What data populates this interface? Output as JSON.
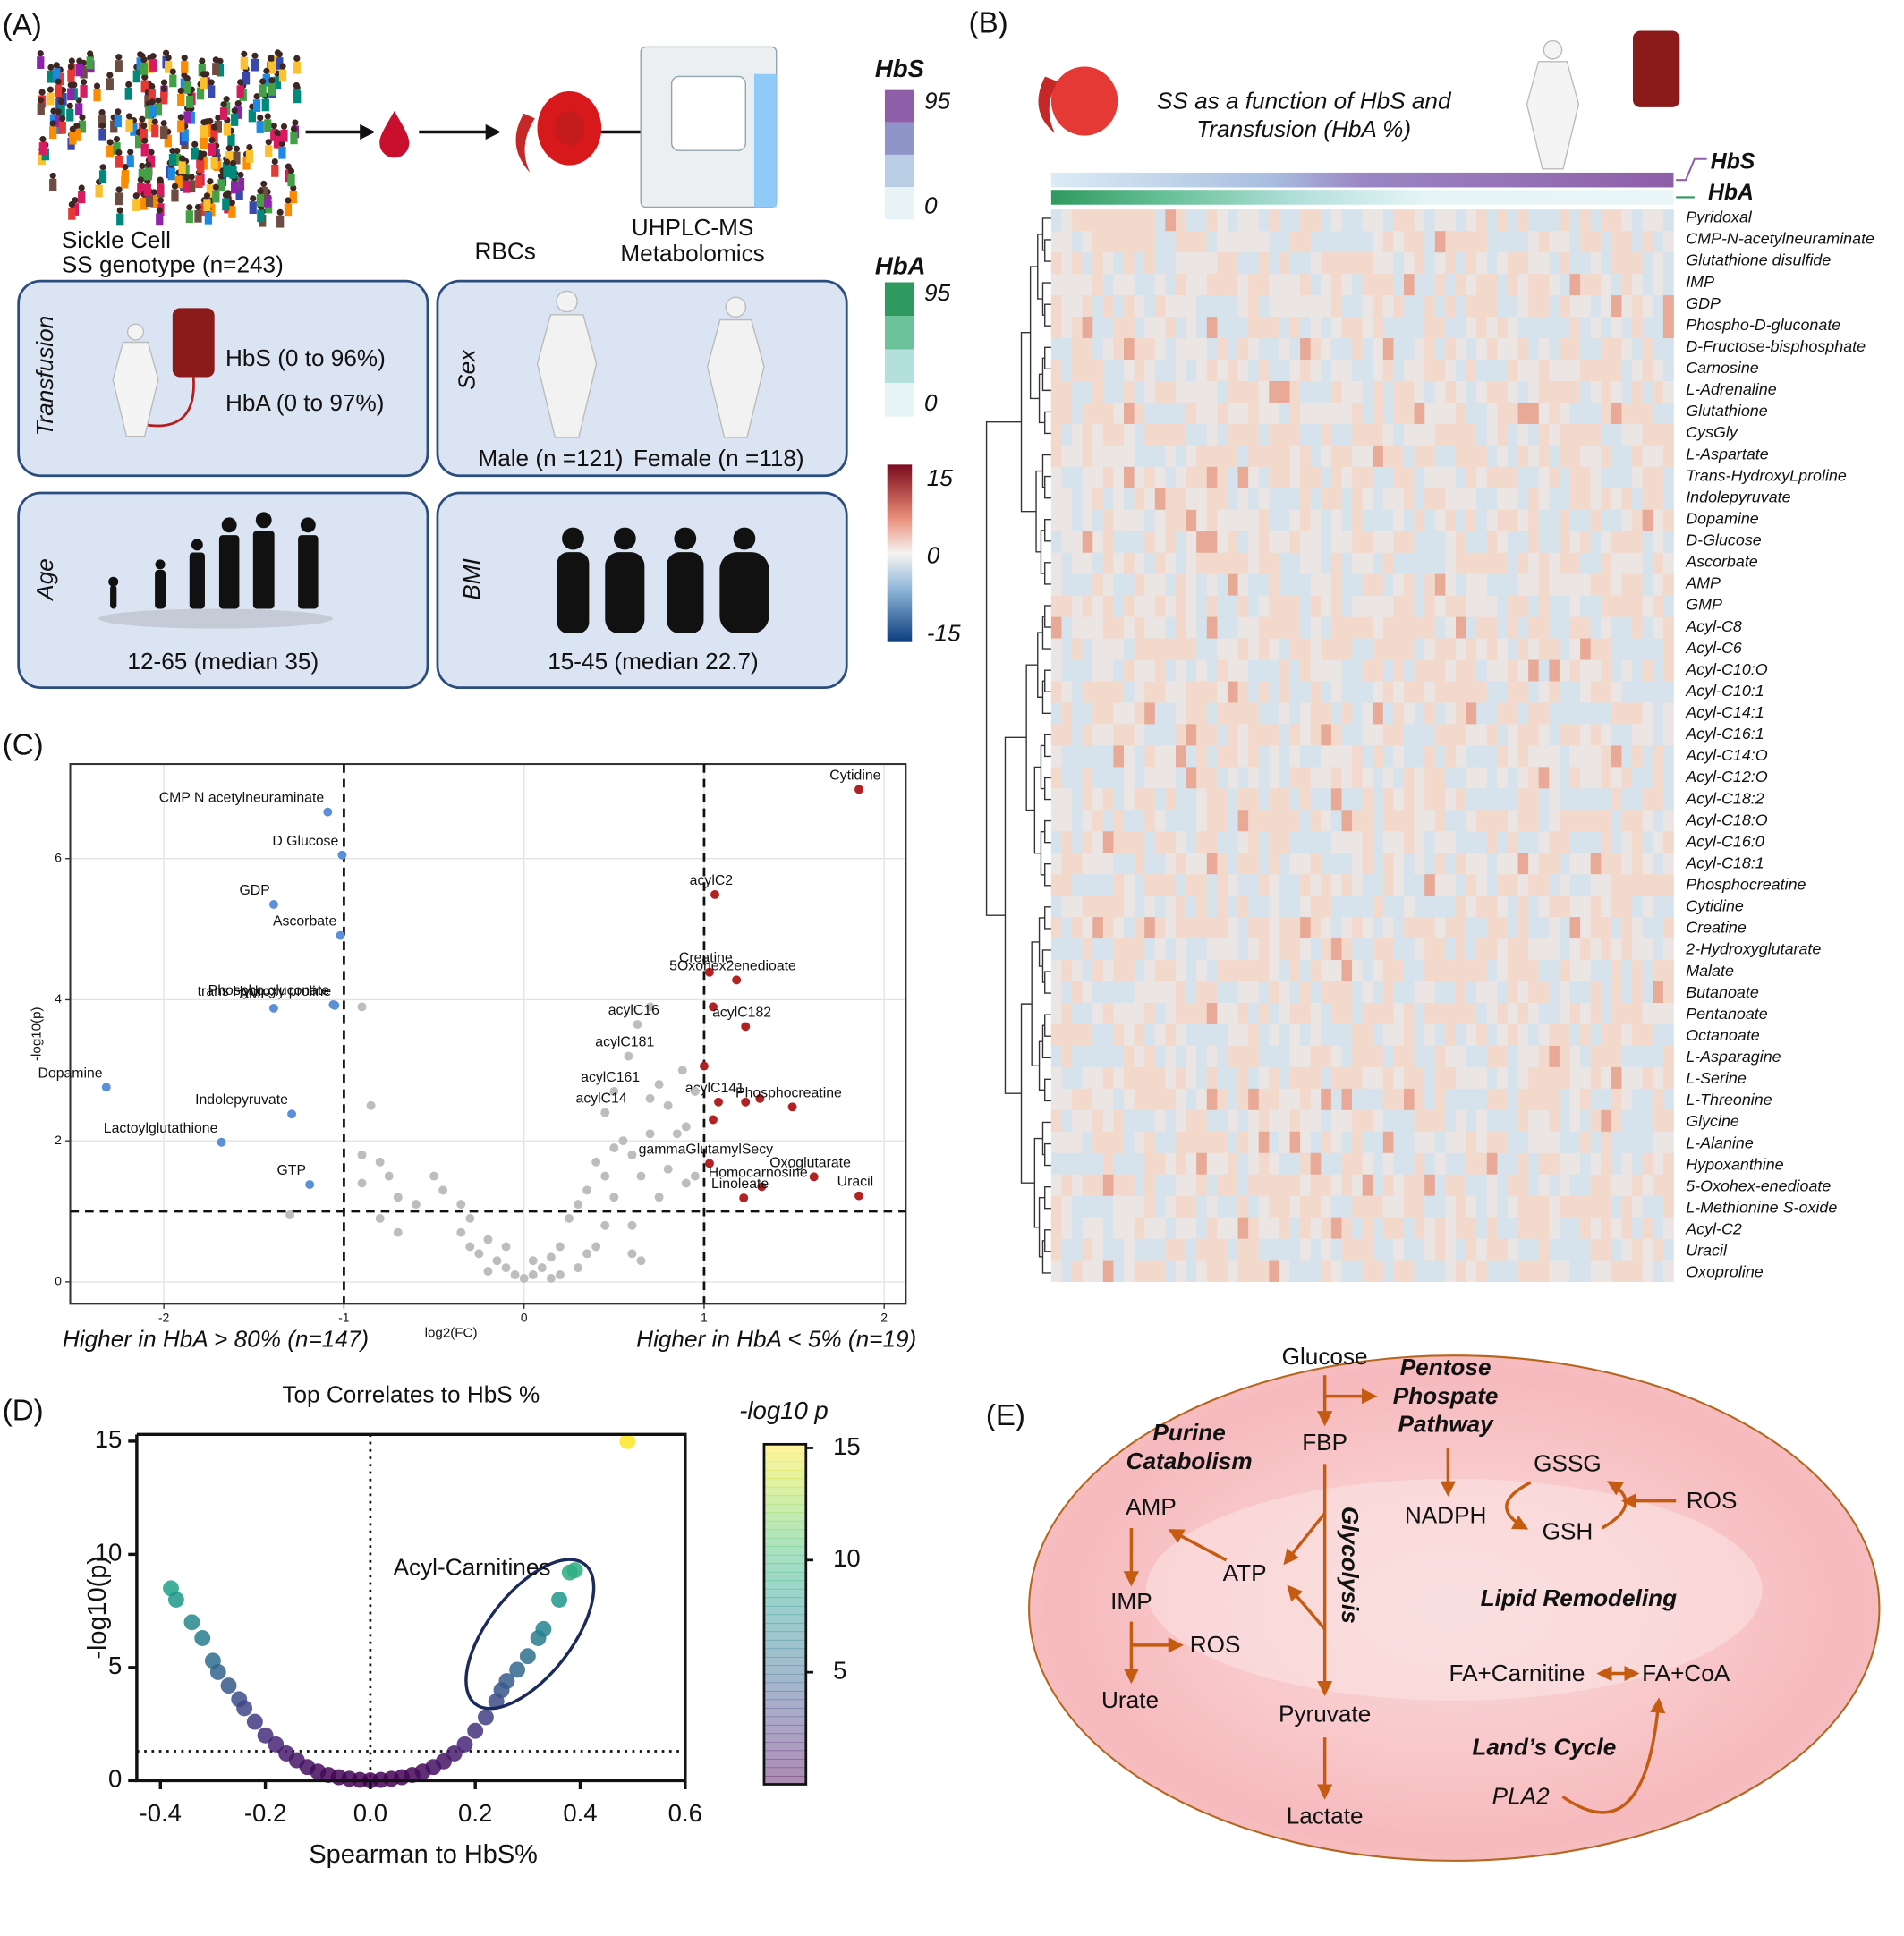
{
  "panel_labels": [
    "(A)",
    "(B)",
    "(C)",
    "(D)",
    "(E)"
  ],
  "panel_a": {
    "cohort": [
      "Sickle Cell",
      "SS genotype (n=243)"
    ],
    "rbc": "RBCs",
    "ms": [
      "UHPLC-MS",
      "Metabolomics"
    ],
    "transfusion": {
      "title": "Transfusion",
      "hbs": "HbS (0 to 96%)",
      "hba": "HbA (0 to 97%)"
    },
    "sex": {
      "title": "Sex",
      "male": "Male (n =121)",
      "female": "Female (n =118)"
    },
    "age": {
      "title": "Age",
      "range": "12-65 (median 35)"
    },
    "bmi": {
      "title": "BMI",
      "range": "15-45 (median 22.7)"
    },
    "legends": [
      {
        "title": "HbS",
        "ticks": [
          95,
          0
        ],
        "colors": [
          "#8e5ea8",
          "#8f95c9",
          "#b9cde5",
          "#e8f3f7"
        ]
      },
      {
        "title": "HbA",
        "ticks": [
          95,
          0
        ],
        "colors": [
          "#2e9a5f",
          "#6cc39b",
          "#b3e0dc",
          "#e6f4f5"
        ]
      }
    ],
    "scale": {
      "ticks": [
        15,
        0,
        -15
      ],
      "lim": [
        15,
        -15
      ]
    }
  },
  "panel_b": {
    "title": [
      "SS as a function of HbS and",
      "Transfusion (HbA %)"
    ],
    "annotations": [
      "HbS",
      "HbA"
    ],
    "rows": [
      "Pyridoxal",
      "CMP-N-acetylneuraminate",
      "Glutathione disulfide",
      "IMP",
      "GDP",
      "Phospho-D-gluconate",
      "D-Fructose-bisphosphate",
      "Carnosine",
      "L-Adrenaline",
      "Glutathione",
      "CysGly",
      "L-Aspartate",
      "Trans-HydroxyLproline",
      "Indolepyruvate",
      "Dopamine",
      "D-Glucose",
      "Ascorbate",
      "AMP",
      "GMP",
      "Acyl-C8",
      "Acyl-C6",
      "Acyl-C10:O",
      "Acyl-C10:1",
      "Acyl-C14:1",
      "Acyl-C16:1",
      "Acyl-C14:O",
      "Acyl-C12:O",
      "Acyl-C18:2",
      "Acyl-C18:O",
      "Acyl-C16:0",
      "Acyl-C18:1",
      "Phosphocreatine",
      "Cytidine",
      "Creatine",
      "2-Hydroxyglutarate",
      "Malate",
      "Butanoate",
      "Pentanoate",
      "Octanoate",
      "L-Asparagine",
      "L-Serine",
      "L-Threonine",
      "Glycine",
      "L-Alanine",
      "Hypoxanthine",
      "5-Oxohex-enedioate",
      "L-Methionine S-oxide",
      "Acyl-C2",
      "Uracil",
      "Oxoproline"
    ]
  },
  "chart_data": [
    {
      "type": "scatter",
      "x_label": "log2(FC)",
      "y_label": "-log10(p)",
      "xlim": [
        -2.52,
        2.12
      ],
      "ylim": [
        -0.31,
        7.34
      ],
      "xticks": [
        -2,
        -1,
        0,
        1,
        2
      ],
      "yticks": [
        0,
        2,
        4,
        6
      ],
      "grid": true,
      "x_thresholds": [
        -1,
        1
      ],
      "y_threshold": 1,
      "series": [
        {
          "name": "Higher in HbA > 80% (n=147)",
          "color": "#5b8fd8",
          "x": [
            -1.09,
            -1.01,
            -1.39,
            -1.02,
            -1.39,
            -1.05,
            -1.06,
            -2.32,
            -1.29,
            -1.68,
            -1.19
          ],
          "values": [
            6.66,
            6.05,
            5.35,
            4.91,
            3.88,
            3.92,
            3.93,
            2.76,
            2.38,
            1.98,
            1.38
          ],
          "labels": [
            "CMP  N acetylneuraminate",
            "D Glucose",
            "GDP",
            "Ascorbate",
            "AMP",
            "trans  Hydroxy  proline",
            "Phospho  gluconate",
            "Dopamine",
            "Indolepyruvate",
            "Lactoylglutathione",
            "GTP"
          ]
        },
        {
          "name": "Higher in HbA < 5% (n=19)",
          "color": "#b22222",
          "x": [
            1.86,
            1.06,
            1.03,
            1.18,
            1.05,
            1.23,
            1.0,
            1.08,
            1.23,
            1.31,
            1.49,
            1.05,
            1.61,
            1.32,
            1.22,
            1.86,
            1.03
          ],
          "values": [
            6.98,
            5.49,
            4.39,
            4.28,
            3.9,
            3.62,
            3.06,
            2.55,
            2.55,
            2.6,
            2.48,
            2.3,
            1.49,
            1.35,
            1.19,
            1.22,
            1.68
          ],
          "labels": [
            "Cytidine",
            "acylC2",
            "Creatine",
            "5Oxohex2enedioate",
            null,
            "acylC182",
            null,
            "acylC141",
            null,
            null,
            "Phosphocreatine",
            null,
            "Oxoglutarate",
            "Homocarnosine",
            "Linoleate",
            "Uracil",
            "gammaGlutamylSecy"
          ]
        },
        {
          "color": "#bdbdbd",
          "x": [
            -0.9,
            -0.85,
            -0.9,
            -0.8,
            -0.75,
            -0.7,
            -0.9,
            -0.8,
            -0.7,
            -0.5,
            -0.45,
            -0.35,
            -0.3,
            -0.35,
            -0.25,
            -0.2,
            -0.15,
            -0.1,
            -0.05,
            0,
            0.05,
            0.1,
            0.15,
            0.2,
            0.25,
            0.3,
            0.35,
            0.4,
            0.45,
            0.5,
            0.5,
            0.55,
            0.6,
            0.6,
            0.65,
            0.7,
            0.7,
            0.75,
            0.75,
            0.8,
            0.85,
            0.9,
            0.63,
            0.58,
            0.5,
            0.45,
            0.7,
            0.8,
            0.9,
            0.95,
            0.4,
            0.3,
            -0.1,
            0.2,
            -0.2,
            0.15,
            0.05,
            -0.3,
            -0.6,
            0.45,
            0.35,
            0.6,
            0.65,
            -1.3,
            0.95,
            0.88
          ],
          "values": [
            3.9,
            2.5,
            1.8,
            1.7,
            1.5,
            1.2,
            1.4,
            0.9,
            0.7,
            1.5,
            1.3,
            0.7,
            0.5,
            1.1,
            0.4,
            0.6,
            0.3,
            0.2,
            0.1,
            0.05,
            0.1,
            0.2,
            0.35,
            0.5,
            0.9,
            1.1,
            1.3,
            1.7,
            1.5,
            1.9,
            1.2,
            2.0,
            0.8,
            1.8,
            1.5,
            2.1,
            2.6,
            1.2,
            2.8,
            1.6,
            2.1,
            1.4,
            3.65,
            3.2,
            2.7,
            2.4,
            3.9,
            2.5,
            2.2,
            1.5,
            0.5,
            0.2,
            0.5,
            0.1,
            0.15,
            0.05,
            0.3,
            0.9,
            1.1,
            0.8,
            0.4,
            0.4,
            0.3,
            0.95,
            2.7,
            3.0
          ],
          "labels": [
            null,
            null,
            null,
            null,
            null,
            null,
            null,
            null,
            null,
            null,
            null,
            null,
            null,
            null,
            null,
            null,
            null,
            null,
            null,
            null,
            null,
            null,
            null,
            null,
            null,
            null,
            null,
            null,
            null,
            null,
            null,
            null,
            null,
            null,
            null,
            null,
            null,
            null,
            null,
            null,
            null,
            null,
            "acylC16",
            "acylC181",
            "acylC161",
            "acylC14",
            null,
            null,
            null,
            null,
            null,
            null,
            null,
            null,
            null,
            null,
            null,
            null,
            null,
            null,
            null,
            null,
            null,
            null,
            null,
            null
          ]
        }
      ],
      "captions": [
        "Higher in HbA > 80% (n=147)",
        "Higher in HbA < 5% (n=19)"
      ]
    },
    {
      "type": "scatter",
      "title": "Top Correlates to HbS %",
      "x_label": "Spearman to HbS%",
      "y_label": "-log10(p)",
      "xlim": [
        -0.445,
        0.6
      ],
      "ylim": [
        0,
        15.3
      ],
      "xticks": [
        -0.4,
        -0.2,
        {
          "value": 0,
          "label": "0.0"
        },
        0.2,
        0.4,
        0.6
      ],
      "yticks": [
        0,
        5,
        10,
        15
      ],
      "x_threshold": 0,
      "y_threshold": 1.3,
      "annotation": "Acyl-Carnitines",
      "colorbar": {
        "title": "-log10 p",
        "colormap": "viridis",
        "clim": [
          0,
          15
        ],
        "ticks": [
          5,
          10,
          15
        ]
      },
      "x": [
        -0.38,
        -0.37,
        -0.34,
        -0.32,
        -0.3,
        -0.29,
        -0.27,
        -0.25,
        -0.24,
        -0.22,
        -0.2,
        -0.18,
        -0.16,
        -0.14,
        -0.12,
        -0.1,
        -0.08,
        -0.06,
        -0.04,
        -0.02,
        0,
        0.02,
        0.04,
        0.06,
        0.08,
        0.1,
        0.12,
        0.14,
        0.16,
        0.18,
        0.2,
        0.22,
        0.24,
        0.25,
        0.26,
        0.28,
        0.3,
        0.32,
        0.33,
        0.36,
        0.38,
        0.39,
        0.49
      ],
      "values": [
        8.5,
        8.0,
        7.0,
        6.3,
        5.3,
        4.8,
        4.2,
        3.6,
        3.2,
        2.6,
        2.0,
        1.6,
        1.2,
        0.9,
        0.6,
        0.4,
        0.25,
        0.15,
        0.08,
        0.03,
        0.01,
        0.03,
        0.08,
        0.15,
        0.25,
        0.4,
        0.6,
        0.85,
        1.2,
        1.6,
        2.2,
        2.8,
        3.5,
        4.0,
        4.4,
        4.9,
        5.5,
        6.3,
        6.7,
        8.0,
        9.2,
        9.3,
        15.0
      ]
    }
  ],
  "panel_e": {
    "glucose": "Glucose",
    "ppp": [
      "Pentose",
      "Phospate",
      "Pathway"
    ],
    "fbp": "FBP",
    "purine": [
      "Purine",
      "Catabolism"
    ],
    "glycolysis": "Glycolysis",
    "gssg": "GSSG",
    "ros_gsh": "ROS",
    "nadph": "NADPH",
    "gsh": "GSH",
    "amp": "AMP",
    "atp": "ATP",
    "imp": "IMP",
    "ros_imp": "ROS",
    "urate": "Urate",
    "lipid": "Lipid Remodeling",
    "fa_carnitine": "FA+Carnitine",
    "fa_coa": "FA+CoA",
    "pyruvate": "Pyruvate",
    "lands": "Land’s Cycle",
    "lactate": "Lactate",
    "pla2": "PLA2"
  }
}
